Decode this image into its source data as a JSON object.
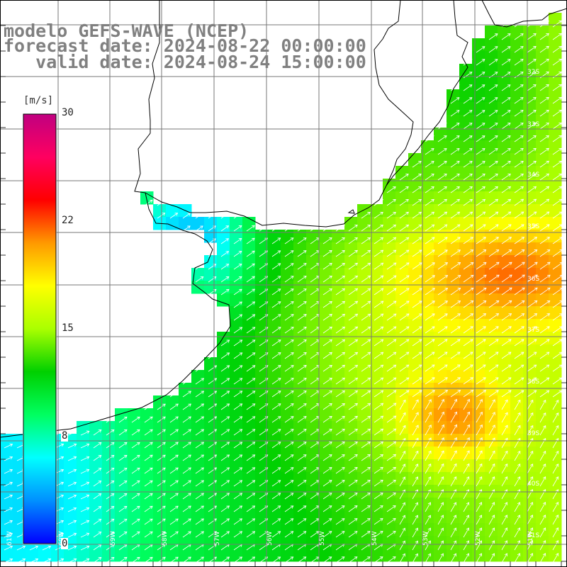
{
  "header": {
    "line1": "modelo GEFS-WAVE (NCEP)",
    "line2": "forecast date: 2024-08-22 00:00:00",
    "line3": "   valid date: 2024-08-24 15:00:00"
  },
  "colorbar": {
    "unit": "[m/s]",
    "ticks": [
      "30",
      "22",
      "15",
      "8",
      "0"
    ],
    "colors": [
      "#0000ff",
      "#0090ff",
      "#00ffff",
      "#00ff60",
      "#00d000",
      "#aaff00",
      "#ffff00",
      "#ff9900",
      "#ff0000",
      "#ff0060",
      "#c00080"
    ]
  },
  "map": {
    "lat_labels": [
      "32S",
      "33S",
      "34S",
      "35S",
      "36S",
      "37S",
      "38S",
      "39S",
      "40S",
      "41S"
    ],
    "lon_labels": [
      "61W",
      "60W",
      "59W",
      "58W",
      "57W",
      "56W",
      "55W",
      "54W",
      "53W",
      "52W",
      "51W"
    ],
    "arrow_color": "#ffffff",
    "land_color": "#ffffff",
    "grid_color": "#777777"
  }
}
